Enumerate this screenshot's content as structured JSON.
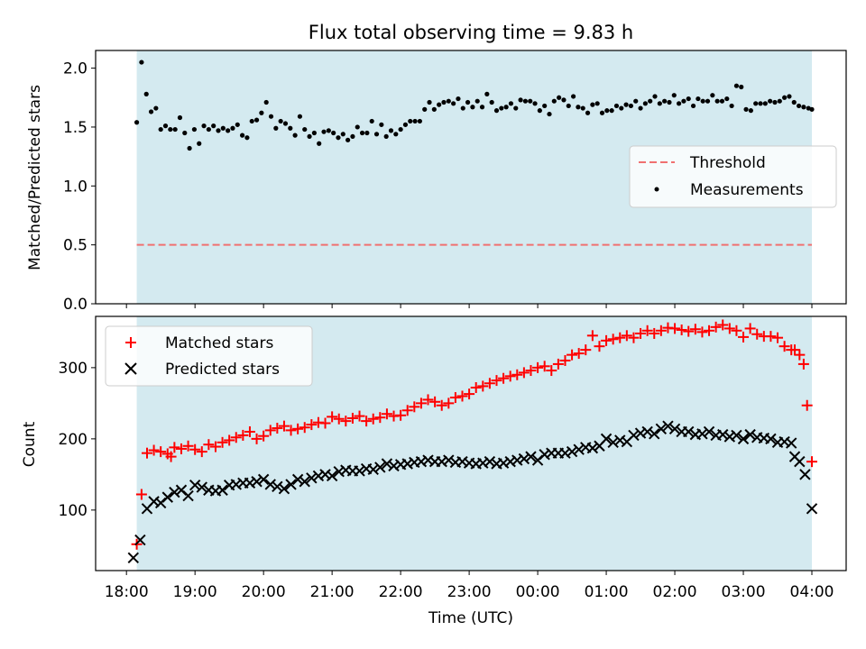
{
  "chart_data": [
    {
      "type": "scatter",
      "title": "Flux total observing time = 9.83 h",
      "xlabel": "",
      "ylabel": "Matched/Predicted stars",
      "ylim": [
        0,
        2.15
      ],
      "yticks": [
        0.0,
        0.5,
        1.0,
        1.5,
        2.0
      ],
      "ytick_labels": [
        "0.0",
        "0.5",
        "1.0",
        "1.5",
        "2.0"
      ],
      "xlim_hours": [
        17.55,
        28.5
      ],
      "observing_window_hours": [
        18.15,
        28.0
      ],
      "observing_window_color": "#d4eaf0",
      "legend_position": "center-right",
      "threshold": {
        "name": "Threshold",
        "value": 0.5,
        "style": "dashed",
        "color": "#f07070"
      },
      "series": [
        {
          "name": "Measurements",
          "color": "#000000",
          "x_hours": [
            18.15,
            18.22,
            18.29,
            18.36,
            18.43,
            18.5,
            18.57,
            18.64,
            18.71,
            18.78,
            18.85,
            18.92,
            18.99,
            19.06,
            19.13,
            19.2,
            19.27,
            19.34,
            19.41,
            19.48,
            19.55,
            19.62,
            19.69,
            19.76,
            19.83,
            19.9,
            19.97,
            20.04,
            20.11,
            20.18,
            20.25,
            20.32,
            20.39,
            20.46,
            20.53,
            20.6,
            20.67,
            20.74,
            20.81,
            20.88,
            20.95,
            21.02,
            21.09,
            21.16,
            21.23,
            21.3,
            21.37,
            21.44,
            21.51,
            21.58,
            21.65,
            21.72,
            21.79,
            21.86,
            21.93,
            22.0,
            22.07,
            22.14,
            22.21,
            22.28,
            22.35,
            22.42,
            22.49,
            22.56,
            22.63,
            22.7,
            22.77,
            22.84,
            22.91,
            22.98,
            23.05,
            23.12,
            23.19,
            23.26,
            23.33,
            23.4,
            23.47,
            23.54,
            23.61,
            23.68,
            23.75,
            23.82,
            23.89,
            23.96,
            24.03,
            24.1,
            24.17,
            24.24,
            24.31,
            24.38,
            24.45,
            24.52,
            24.59,
            24.66,
            24.73,
            24.8,
            24.87,
            24.94,
            25.01,
            25.08,
            25.15,
            25.22,
            25.29,
            25.36,
            25.43,
            25.5,
            25.57,
            25.64,
            25.71,
            25.78,
            25.85,
            25.92,
            25.99,
            26.06,
            26.13,
            26.2,
            26.27,
            26.34,
            26.41,
            26.48,
            26.55,
            26.62,
            26.69,
            26.76,
            26.83,
            26.9,
            26.97,
            27.04,
            27.11,
            27.18,
            27.25,
            27.32,
            27.39,
            27.46,
            27.53,
            27.6,
            27.67,
            27.74,
            27.81,
            27.88,
            27.95,
            28.0
          ],
          "y": [
            1.54,
            2.05,
            1.78,
            1.63,
            1.66,
            1.48,
            1.51,
            1.48,
            1.48,
            1.58,
            1.45,
            1.32,
            1.48,
            1.36,
            1.51,
            1.48,
            1.51,
            1.47,
            1.49,
            1.47,
            1.49,
            1.52,
            1.43,
            1.41,
            1.55,
            1.56,
            1.62,
            1.71,
            1.59,
            1.49,
            1.55,
            1.53,
            1.49,
            1.43,
            1.59,
            1.48,
            1.42,
            1.45,
            1.36,
            1.46,
            1.47,
            1.45,
            1.41,
            1.44,
            1.39,
            1.42,
            1.5,
            1.45,
            1.45,
            1.55,
            1.44,
            1.52,
            1.42,
            1.47,
            1.44,
            1.48,
            1.52,
            1.55,
            1.55,
            1.55,
            1.65,
            1.71,
            1.65,
            1.69,
            1.71,
            1.72,
            1.7,
            1.74,
            1.66,
            1.71,
            1.67,
            1.72,
            1.67,
            1.78,
            1.71,
            1.64,
            1.66,
            1.67,
            1.7,
            1.66,
            1.73,
            1.72,
            1.72,
            1.7,
            1.64,
            1.68,
            1.61,
            1.72,
            1.75,
            1.73,
            1.68,
            1.76,
            1.67,
            1.66,
            1.62,
            1.69,
            1.7,
            1.62,
            1.64,
            1.64,
            1.68,
            1.66,
            1.69,
            1.68,
            1.72,
            1.66,
            1.7,
            1.72,
            1.76,
            1.7,
            1.72,
            1.71,
            1.77,
            1.7,
            1.72,
            1.74,
            1.68,
            1.74,
            1.72,
            1.72,
            1.77,
            1.72,
            1.72,
            1.74,
            1.68,
            1.85,
            1.84,
            1.65,
            1.64,
            1.7,
            1.7,
            1.7,
            1.72,
            1.71,
            1.72,
            1.75,
            1.76,
            1.71,
            1.68,
            1.67,
            1.66,
            1.65
          ]
        }
      ]
    },
    {
      "type": "scatter",
      "title": "",
      "xlabel": "Time (UTC)",
      "ylabel": "Count",
      "ylim": [
        15,
        372
      ],
      "yticks": [
        100,
        200,
        300
      ],
      "ytick_labels": [
        "100",
        "200",
        "300"
      ],
      "xlim_hours": [
        17.55,
        28.5
      ],
      "observing_window_hours": [
        18.15,
        28.0
      ],
      "observing_window_color": "#d4eaf0",
      "xticks_hours": [
        18,
        19,
        20,
        21,
        22,
        23,
        24,
        25,
        26,
        27,
        28
      ],
      "xtick_labels": [
        "18:00",
        "19:00",
        "20:00",
        "21:00",
        "22:00",
        "23:00",
        "00:00",
        "01:00",
        "02:00",
        "03:00",
        "04:00"
      ],
      "legend_position": "top-left",
      "series": [
        {
          "name": "Matched stars",
          "marker": "plus",
          "color": "#ff0000",
          "x_hours": [
            18.15,
            18.22,
            18.3,
            18.4,
            18.5,
            18.6,
            18.65,
            18.7,
            18.8,
            18.9,
            19.0,
            19.1,
            19.2,
            19.3,
            19.4,
            19.5,
            19.6,
            19.7,
            19.8,
            19.9,
            20.0,
            20.1,
            20.2,
            20.3,
            20.4,
            20.5,
            20.6,
            20.7,
            20.8,
            20.9,
            21.0,
            21.1,
            21.2,
            21.3,
            21.4,
            21.5,
            21.6,
            21.7,
            21.8,
            21.9,
            22.0,
            22.1,
            22.2,
            22.3,
            22.4,
            22.5,
            22.6,
            22.7,
            22.8,
            22.9,
            23.0,
            23.1,
            23.2,
            23.3,
            23.4,
            23.5,
            23.6,
            23.7,
            23.8,
            23.9,
            24.0,
            24.1,
            24.2,
            24.3,
            24.4,
            24.5,
            24.6,
            24.7,
            24.8,
            24.9,
            25.0,
            25.1,
            25.2,
            25.3,
            25.4,
            25.5,
            25.6,
            25.7,
            25.8,
            25.9,
            26.0,
            26.1,
            26.2,
            26.3,
            26.4,
            26.5,
            26.6,
            26.7,
            26.8,
            26.9,
            27.0,
            27.1,
            27.2,
            27.3,
            27.4,
            27.5,
            27.6,
            27.7,
            27.75,
            27.82,
            27.88,
            27.93,
            28.0
          ],
          "y": [
            52,
            122,
            180,
            184,
            182,
            179,
            175,
            188,
            186,
            190,
            185,
            182,
            192,
            189,
            195,
            198,
            202,
            205,
            210,
            200,
            204,
            212,
            215,
            218,
            212,
            214,
            216,
            220,
            223,
            222,
            231,
            228,
            225,
            229,
            232,
            225,
            228,
            230,
            235,
            232,
            233,
            240,
            245,
            250,
            255,
            252,
            247,
            250,
            258,
            260,
            263,
            272,
            274,
            278,
            282,
            285,
            288,
            290,
            293,
            296,
            300,
            302,
            296,
            305,
            310,
            318,
            320,
            325,
            345,
            330,
            338,
            340,
            342,
            345,
            342,
            348,
            352,
            348,
            352,
            356,
            355,
            353,
            351,
            354,
            350,
            352,
            357,
            360,
            355,
            352,
            343,
            355,
            347,
            344,
            344,
            342,
            330,
            325,
            325,
            318,
            305,
            247,
            168
          ]
        },
        {
          "name": "Predicted stars",
          "marker": "x",
          "color": "#000000",
          "x_hours": [
            18.1,
            18.2,
            18.3,
            18.4,
            18.5,
            18.6,
            18.7,
            18.8,
            18.9,
            19.0,
            19.1,
            19.2,
            19.3,
            19.4,
            19.5,
            19.6,
            19.7,
            19.8,
            19.9,
            20.0,
            20.1,
            20.2,
            20.3,
            20.4,
            20.5,
            20.6,
            20.7,
            20.8,
            20.9,
            21.0,
            21.1,
            21.2,
            21.3,
            21.4,
            21.5,
            21.6,
            21.7,
            21.8,
            21.9,
            22.0,
            22.1,
            22.2,
            22.3,
            22.4,
            22.5,
            22.6,
            22.7,
            22.8,
            22.9,
            23.0,
            23.1,
            23.2,
            23.3,
            23.4,
            23.5,
            23.6,
            23.7,
            23.8,
            23.9,
            24.0,
            24.1,
            24.2,
            24.3,
            24.4,
            24.5,
            24.6,
            24.7,
            24.8,
            24.9,
            25.0,
            25.1,
            25.2,
            25.3,
            25.4,
            25.5,
            25.6,
            25.7,
            25.8,
            25.9,
            26.0,
            26.1,
            26.2,
            26.3,
            26.4,
            26.5,
            26.6,
            26.7,
            26.8,
            26.9,
            27.0,
            27.1,
            27.2,
            27.3,
            27.4,
            27.5,
            27.6,
            27.7,
            27.75,
            27.82,
            27.9,
            28.0
          ],
          "y": [
            33,
            58,
            102,
            112,
            110,
            118,
            125,
            128,
            120,
            135,
            132,
            128,
            127,
            128,
            135,
            136,
            138,
            138,
            140,
            143,
            136,
            133,
            130,
            136,
            143,
            140,
            145,
            148,
            150,
            148,
            154,
            156,
            155,
            155,
            158,
            157,
            160,
            165,
            162,
            164,
            165,
            167,
            168,
            170,
            168,
            168,
            170,
            167,
            168,
            166,
            165,
            166,
            168,
            165,
            166,
            168,
            170,
            172,
            175,
            170,
            178,
            180,
            180,
            180,
            182,
            185,
            188,
            187,
            190,
            200,
            195,
            198,
            196,
            205,
            208,
            210,
            207,
            214,
            218,
            214,
            210,
            210,
            206,
            207,
            210,
            205,
            206,
            203,
            205,
            200,
            206,
            202,
            201,
            200,
            195,
            196,
            194,
            175,
            168,
            150,
            102
          ]
        }
      ]
    }
  ]
}
